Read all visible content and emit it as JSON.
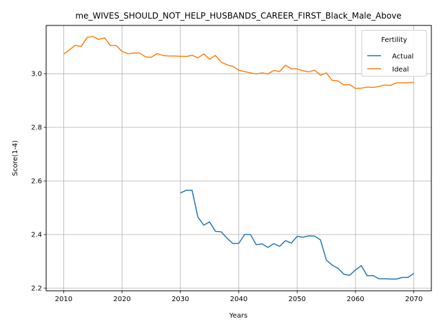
{
  "chart_data": {
    "type": "line",
    "title": "me_WIVES_SHOULD_NOT_HELP_HUSBANDS_CAREER_FIRST_Black_Male_Above",
    "xlabel": "Years",
    "ylabel": "Score(1-4)",
    "xlim": [
      2007,
      2073
    ],
    "ylim": [
      2.19,
      3.18
    ],
    "xticks": [
      2010,
      2020,
      2030,
      2040,
      2050,
      2060,
      2070
    ],
    "yticks": [
      2.2,
      2.4,
      2.6,
      2.8,
      3.0
    ],
    "xtick_labels": [
      "2010",
      "2020",
      "2030",
      "2040",
      "2050",
      "2060",
      "2070"
    ],
    "ytick_labels": [
      "2.2",
      "2.4",
      "2.6",
      "2.8",
      "3.0"
    ],
    "grid": true,
    "legend": {
      "title": "Fertility",
      "placement": "top-right"
    },
    "series": [
      {
        "name": "Actual",
        "color": "#1f77b4",
        "x": [
          2030,
          2031,
          2032,
          2033,
          2034,
          2035,
          2036,
          2037,
          2038,
          2039,
          2040,
          2041,
          2042,
          2043,
          2044,
          2045,
          2046,
          2047,
          2048,
          2049,
          2050,
          2051,
          2052,
          2053,
          2054,
          2055,
          2056,
          2057,
          2058,
          2059,
          2060,
          2061,
          2062,
          2063,
          2064,
          2065,
          2066,
          2067,
          2068,
          2069,
          2070
        ],
        "y": [
          2.555,
          2.565,
          2.565,
          2.465,
          2.435,
          2.447,
          2.412,
          2.41,
          2.386,
          2.366,
          2.367,
          2.4,
          2.4,
          2.362,
          2.365,
          2.352,
          2.366,
          2.356,
          2.377,
          2.368,
          2.393,
          2.39,
          2.395,
          2.394,
          2.38,
          2.305,
          2.286,
          2.274,
          2.252,
          2.248,
          2.268,
          2.284,
          2.246,
          2.247,
          2.235,
          2.235,
          2.234,
          2.234,
          2.24,
          2.24,
          2.255
        ]
      },
      {
        "name": "Ideal",
        "color": "#ff7f0e",
        "x": [
          2010,
          2011,
          2012,
          2013,
          2014,
          2015,
          2016,
          2017,
          2018,
          2019,
          2020,
          2021,
          2022,
          2023,
          2024,
          2025,
          2026,
          2027,
          2028,
          2029,
          2030,
          2031,
          2032,
          2033,
          2034,
          2035,
          2036,
          2037,
          2038,
          2039,
          2040,
          2041,
          2042,
          2043,
          2044,
          2045,
          2046,
          2047,
          2048,
          2049,
          2050,
          2051,
          2052,
          2053,
          2054,
          2055,
          2056,
          2057,
          2058,
          2059,
          2060,
          2061,
          2062,
          2063,
          2064,
          2065,
          2066,
          2067,
          2068,
          2069,
          2070
        ],
        "y": [
          3.073,
          3.089,
          3.106,
          3.101,
          3.135,
          3.139,
          3.128,
          3.134,
          3.105,
          3.105,
          3.083,
          3.075,
          3.077,
          3.077,
          3.063,
          3.061,
          3.075,
          3.068,
          3.066,
          3.066,
          3.065,
          3.064,
          3.069,
          3.059,
          3.074,
          3.054,
          3.068,
          3.043,
          3.033,
          3.027,
          3.013,
          3.008,
          3.003,
          2.999,
          3.003,
          2.999,
          3.012,
          3.008,
          3.032,
          3.018,
          3.018,
          3.011,
          3.007,
          3.013,
          2.994,
          3.003,
          2.975,
          2.973,
          2.958,
          2.959,
          2.945,
          2.946,
          2.95,
          2.949,
          2.952,
          2.958,
          2.956,
          2.966,
          2.966,
          2.966,
          2.968
        ]
      }
    ]
  }
}
